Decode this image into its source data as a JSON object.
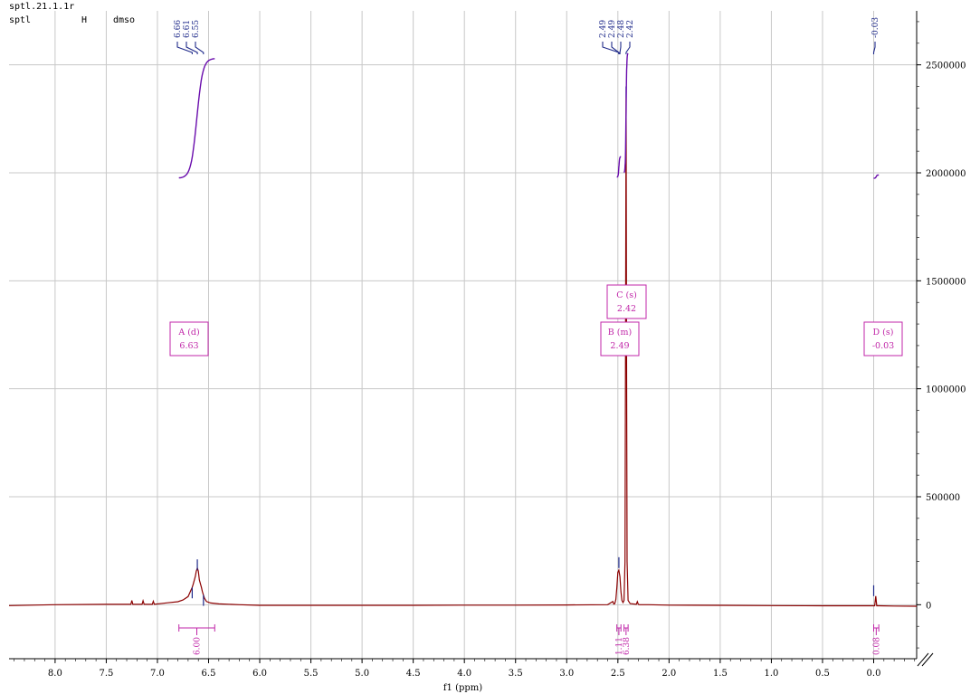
{
  "header": {
    "file_name": "sptl.21.1.1r",
    "sample": "sptl",
    "nucleus": "H",
    "solvent": "dmso"
  },
  "colors": {
    "spectrum": "#8b0000",
    "integral": "#6a0dad",
    "peak_pick": "#1f2a8a",
    "annotation": "#c026a8",
    "grid": "#c8c8c8"
  },
  "chart_data": {
    "type": "line",
    "title": "",
    "xlabel": "f1 (ppm)",
    "ylabel": "",
    "x_reversed": true,
    "xlim": [
      8.45,
      -0.42
    ],
    "ylim": [
      -250000,
      2750000
    ],
    "x_ticks": [
      8.0,
      7.5,
      7.0,
      6.5,
      6.0,
      5.5,
      5.0,
      4.5,
      4.0,
      3.5,
      3.0,
      2.5,
      2.0,
      1.5,
      1.0,
      0.5,
      0.0
    ],
    "x_tick_labels": [
      "8.0",
      "7.5",
      "7.0",
      "6.5",
      "6.0",
      "5.5",
      "5.0",
      "4.5",
      "4.0",
      "3.5",
      "3.0",
      "2.5",
      "2.0",
      "1.5",
      "1.0",
      "0.5",
      "0.0"
    ],
    "y_ticks": [
      0,
      500000,
      1000000,
      1500000,
      2000000,
      2500000
    ],
    "y_tick_labels": [
      "0",
      "500000",
      "1000000",
      "1500000",
      "2000000",
      "2500000"
    ],
    "grid": true,
    "series": [
      {
        "x": [
          8.45,
          8.0,
          7.5,
          7.26,
          7.25,
          7.24,
          7.15,
          7.14,
          7.13,
          7.05,
          7.04,
          7.03,
          6.9,
          6.8,
          6.75,
          6.7,
          6.67,
          6.66,
          6.65,
          6.63,
          6.62,
          6.61,
          6.6,
          6.59,
          6.57,
          6.56,
          6.55,
          6.54,
          6.52,
          6.48,
          6.4,
          6.2,
          6.0,
          5.5,
          5.0,
          4.5,
          4.0,
          3.5,
          3.0,
          2.6,
          2.55,
          2.54,
          2.53,
          2.52,
          2.51,
          2.5,
          2.49,
          2.48,
          2.47,
          2.46,
          2.45,
          2.44,
          2.43,
          2.425,
          2.42,
          2.415,
          2.41,
          2.4,
          2.38,
          2.32,
          2.31,
          2.3,
          2.29,
          2.2,
          2.0,
          1.5,
          1.0,
          0.5,
          0.05,
          0.04,
          0.03,
          0.02,
          0.01,
          0.0,
          -0.01,
          -0.02,
          -0.03,
          -0.04,
          -0.05,
          -0.2,
          -0.42
        ],
        "y": [
          -4000,
          0,
          2000,
          2000,
          20000,
          2000,
          2000,
          18000,
          2000,
          2000,
          16000,
          2000,
          9000,
          14000,
          22000,
          38000,
          70000,
          80000,
          95000,
          130000,
          155000,
          170000,
          155000,
          115000,
          80000,
          60000,
          45000,
          30000,
          15000,
          8000,
          4000,
          0,
          -3000,
          -3000,
          -3000,
          -3000,
          -2000,
          -2000,
          -1000,
          0,
          15000,
          3000,
          5000,
          25000,
          80000,
          150000,
          160000,
          130000,
          60000,
          20000,
          10000,
          20000,
          200000,
          1200000,
          2350000,
          1200000,
          200000,
          20000,
          5000,
          2000,
          14000,
          2000,
          0,
          0,
          -2000,
          -3000,
          -4000,
          -5000,
          -5000,
          -5000,
          -5000,
          -5000,
          -5000,
          -5000,
          -5000,
          40000,
          -5000,
          -5000,
          -5000,
          -6000,
          -7000
        ]
      }
    ],
    "peak_picks": [
      "6.66",
      "6.61",
      "6.55",
      "2.49",
      "2.49",
      "2.48",
      "2.42",
      "-0.03"
    ],
    "multiplets": [
      {
        "label": "A (d)",
        "value": "6.63"
      },
      {
        "label": "B (m)",
        "value": "2.49"
      },
      {
        "label": "C (s)",
        "value": "2.42"
      },
      {
        "label": "D (s)",
        "value": "-0.03"
      }
    ],
    "integrals": [
      {
        "value": "6.00",
        "from": 6.79,
        "to": 6.44,
        "baseline": 1975000,
        "height": 555000
      },
      {
        "value": "1.11",
        "from": 2.51,
        "to": 2.47,
        "baseline": 1980000,
        "height": 95000
      },
      {
        "value": "6.38",
        "from": 2.44,
        "to": 2.4,
        "baseline": 2000000,
        "height": 555000
      },
      {
        "value": "0.08",
        "from": 0.0,
        "to": -0.05,
        "baseline": 1975000,
        "height": 15000
      }
    ]
  }
}
